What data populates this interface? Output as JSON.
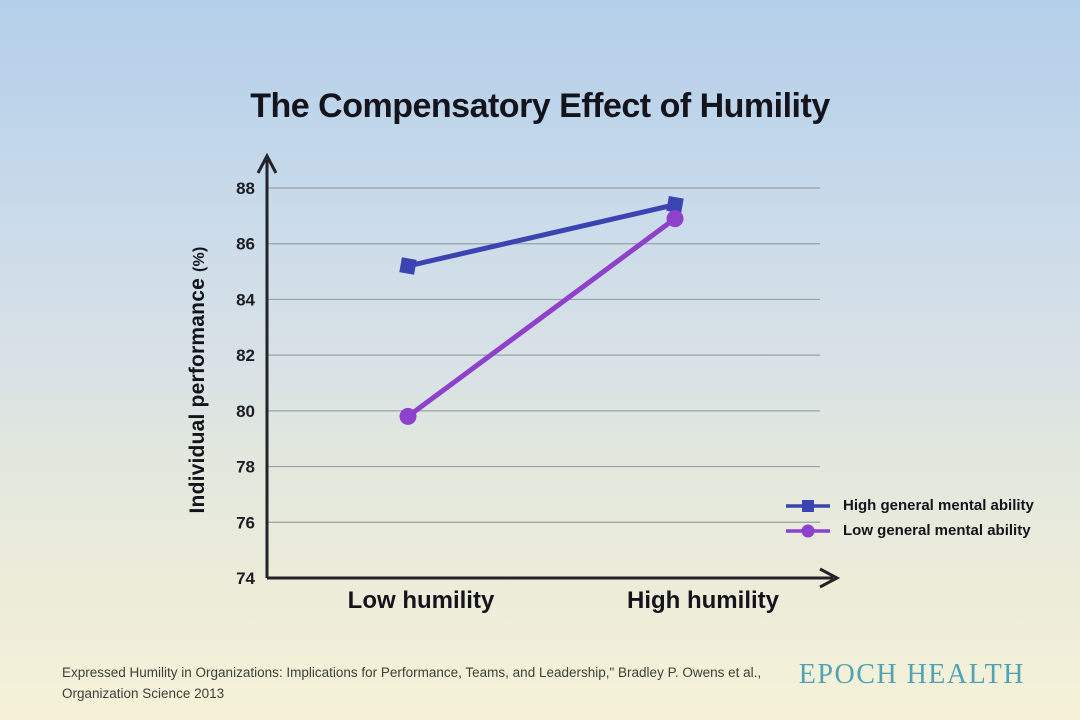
{
  "page": {
    "title": "The Compensatory Effect of Humility",
    "footer_line1": "Expressed Humility in Organizations: Implications for Performance, Teams, and Leadership,\" Bradley P. Owens et al.,",
    "footer_line2": "Organization Science 2013",
    "brand": "EPOCH HEALTH"
  },
  "colors": {
    "background_top": "#B4CFE9",
    "background_bottom": "#F6F2D9",
    "axis": "#23232A",
    "gridline": "#98A1A2",
    "text_dark": "#14141C",
    "footer_text": "#3F3F37",
    "brand_teal": "#4FA3B5",
    "series_high_gma": "#3C43B2",
    "series_low_gma": "#8E41CC"
  },
  "chart_data": {
    "type": "line",
    "title": "The Compensatory Effect of Humility",
    "categories": [
      "Low humility",
      "High humility"
    ],
    "series": [
      {
        "name": "High general mental ability",
        "values": [
          85.2,
          87.4
        ],
        "color": "#3C43B2",
        "marker": "square"
      },
      {
        "name": "Low general mental ability",
        "values": [
          79.8,
          86.9
        ],
        "color": "#8E41CC",
        "marker": "circle"
      }
    ],
    "xlabel": "",
    "ylabel": "Individual performance (%)",
    "ylabel_main": "Individual performance",
    "ylabel_unit": "(%)",
    "ylim": [
      74,
      88
    ],
    "ytick_step": 2,
    "yticks": [
      74,
      76,
      78,
      80,
      82,
      84,
      86,
      88
    ],
    "grid": true,
    "legend_position": "bottom-right"
  }
}
